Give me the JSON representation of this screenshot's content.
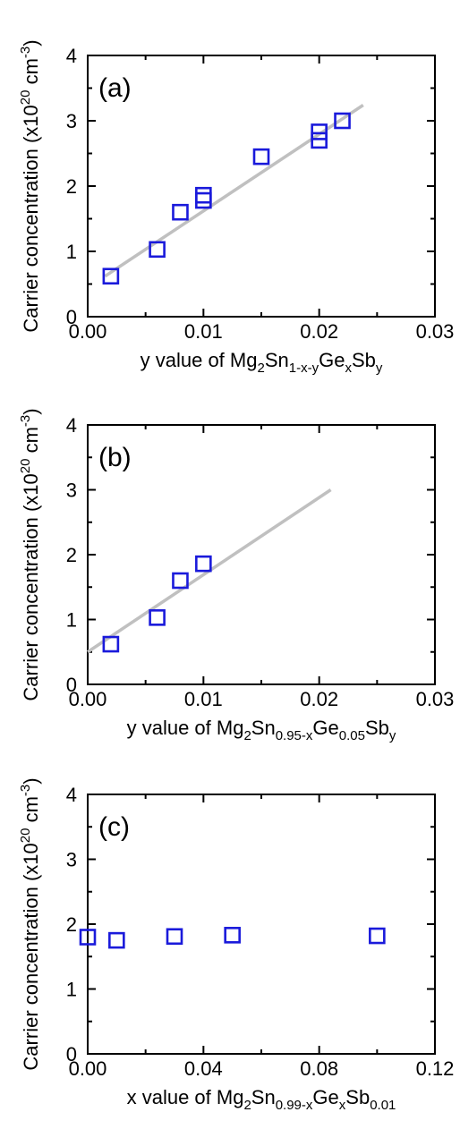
{
  "chart_data": [
    {
      "type": "scatter",
      "panel_label": "(a)",
      "xlim": [
        0,
        0.03
      ],
      "ylim": [
        0,
        4
      ],
      "x_ticks": [
        "0.00",
        "0.01",
        "0.02",
        "0.03"
      ],
      "y_ticks": [
        "0",
        "1",
        "2",
        "3",
        "4"
      ],
      "xlabel": {
        "pre": "y value of Mg",
        "s1": "2",
        "m1": "Sn",
        "s2": "1-x-y",
        "m2": "Ge",
        "s3": "x",
        "m3": "Sb",
        "s4": "y"
      },
      "ylabel": {
        "pre": "Carrier concentration (x10",
        "sup": "20",
        "mid": " cm",
        "sup2": "-3",
        "post": ")"
      },
      "marker_color": "#1a1adb",
      "line_color": "#c0c0c0",
      "points": [
        {
          "x": 0.002,
          "y": 0.62
        },
        {
          "x": 0.006,
          "y": 1.03
        },
        {
          "x": 0.008,
          "y": 1.6
        },
        {
          "x": 0.01,
          "y": 1.78
        },
        {
          "x": 0.01,
          "y": 1.86
        },
        {
          "x": 0.015,
          "y": 2.45
        },
        {
          "x": 0.02,
          "y": 2.7
        },
        {
          "x": 0.02,
          "y": 2.83
        },
        {
          "x": 0.022,
          "y": 3.0
        }
      ],
      "fit_line": [
        {
          "x": 0.0015,
          "y": 0.62
        },
        {
          "x": 0.0238,
          "y": 3.24
        }
      ]
    },
    {
      "type": "scatter",
      "panel_label": "(b)",
      "xlim": [
        0,
        0.03
      ],
      "ylim": [
        0,
        4
      ],
      "x_ticks": [
        "0.00",
        "0.01",
        "0.02",
        "0.03"
      ],
      "y_ticks": [
        "0",
        "1",
        "2",
        "3",
        "4"
      ],
      "xlabel": {
        "pre": "y value of Mg",
        "s1": "2",
        "m1": "Sn",
        "s2": "0.95-x",
        "m2": "Ge",
        "s3": "0.05",
        "m3": "Sb",
        "s4": "y"
      },
      "ylabel": {
        "pre": "Carrier concentration (x10",
        "sup": "20",
        "mid": " cm",
        "sup2": "-3",
        "post": ")"
      },
      "marker_color": "#1a1adb",
      "line_color": "#c0c0c0",
      "points": [
        {
          "x": 0.002,
          "y": 0.62
        },
        {
          "x": 0.006,
          "y": 1.03
        },
        {
          "x": 0.008,
          "y": 1.6
        },
        {
          "x": 0.01,
          "y": 1.86
        }
      ],
      "fit_line": [
        {
          "x": 0.0,
          "y": 0.5
        },
        {
          "x": 0.021,
          "y": 3.0
        }
      ]
    },
    {
      "type": "scatter",
      "panel_label": "(c)",
      "xlim": [
        0,
        0.12
      ],
      "ylim": [
        0,
        4
      ],
      "x_ticks": [
        "0.00",
        "0.04",
        "0.08",
        "0.12"
      ],
      "y_ticks": [
        "0",
        "1",
        "2",
        "3",
        "4"
      ],
      "xlabel": {
        "pre": "x value of Mg",
        "s1": "2",
        "m1": "Sn",
        "s2": "0.99-x",
        "m2": "Ge",
        "s3": "x",
        "m3": "Sb",
        "s4": "0.01"
      },
      "ylabel": {
        "pre": "Carrier concentration (x10",
        "sup": "20",
        "mid": " cm",
        "sup2": "-3",
        "post": ")"
      },
      "marker_color": "#1a1adb",
      "points": [
        {
          "x": 0.0,
          "y": 1.8
        },
        {
          "x": 0.01,
          "y": 1.75
        },
        {
          "x": 0.03,
          "y": 1.81
        },
        {
          "x": 0.05,
          "y": 1.83
        },
        {
          "x": 0.1,
          "y": 1.82
        }
      ]
    }
  ]
}
